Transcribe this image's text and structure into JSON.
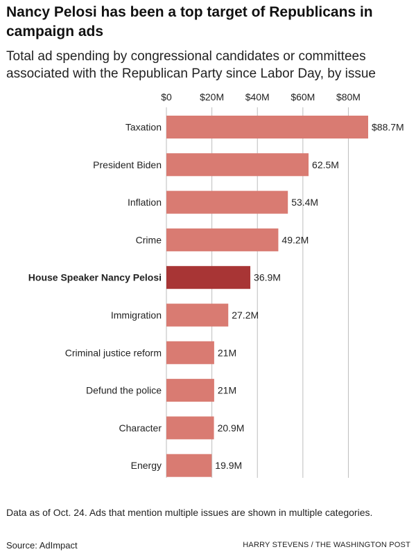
{
  "header": {
    "title": "Nancy Pelosi has been a top target of Republicans in campaign ads",
    "subtitle": "Total ad spending by congressional candidates or committees associated with the Republican Party since Labor Day, by issue"
  },
  "footer": {
    "note": "Data as of Oct. 24. Ads that mention multiple issues are shown in multiple categories.",
    "source": "Source: AdImpact",
    "credit": "HARRY STEVENS / THE WASHINGTON POST"
  },
  "colors": {
    "bar": "#d97b72",
    "highlight": "#a83535",
    "grid": "#bdbdbd",
    "text": "#222222"
  },
  "chart_data": {
    "type": "bar",
    "orientation": "horizontal",
    "categories": [
      "Taxation",
      "President Biden",
      "Inflation",
      "Crime",
      "House Speaker Nancy Pelosi",
      "Immigration",
      "Criminal justice reform",
      "Defund the police",
      "Character",
      "Energy"
    ],
    "values": [
      88.7,
      62.5,
      53.4,
      49.2,
      36.9,
      27.2,
      21,
      21,
      20.9,
      19.9
    ],
    "value_labels": [
      "$88.7M",
      "62.5M",
      "53.4M",
      "49.2M",
      "36.9M",
      "27.2M",
      "21M",
      "21M",
      "20.9M",
      "19.9M"
    ],
    "highlight_index": 4,
    "x_ticks": [
      0,
      20,
      40,
      60,
      80
    ],
    "x_tick_labels": [
      "$0",
      "$20M",
      "$40M",
      "$60M",
      "$80M"
    ],
    "xlim": [
      0,
      88.7
    ],
    "grid": true,
    "axis_position": "top"
  }
}
